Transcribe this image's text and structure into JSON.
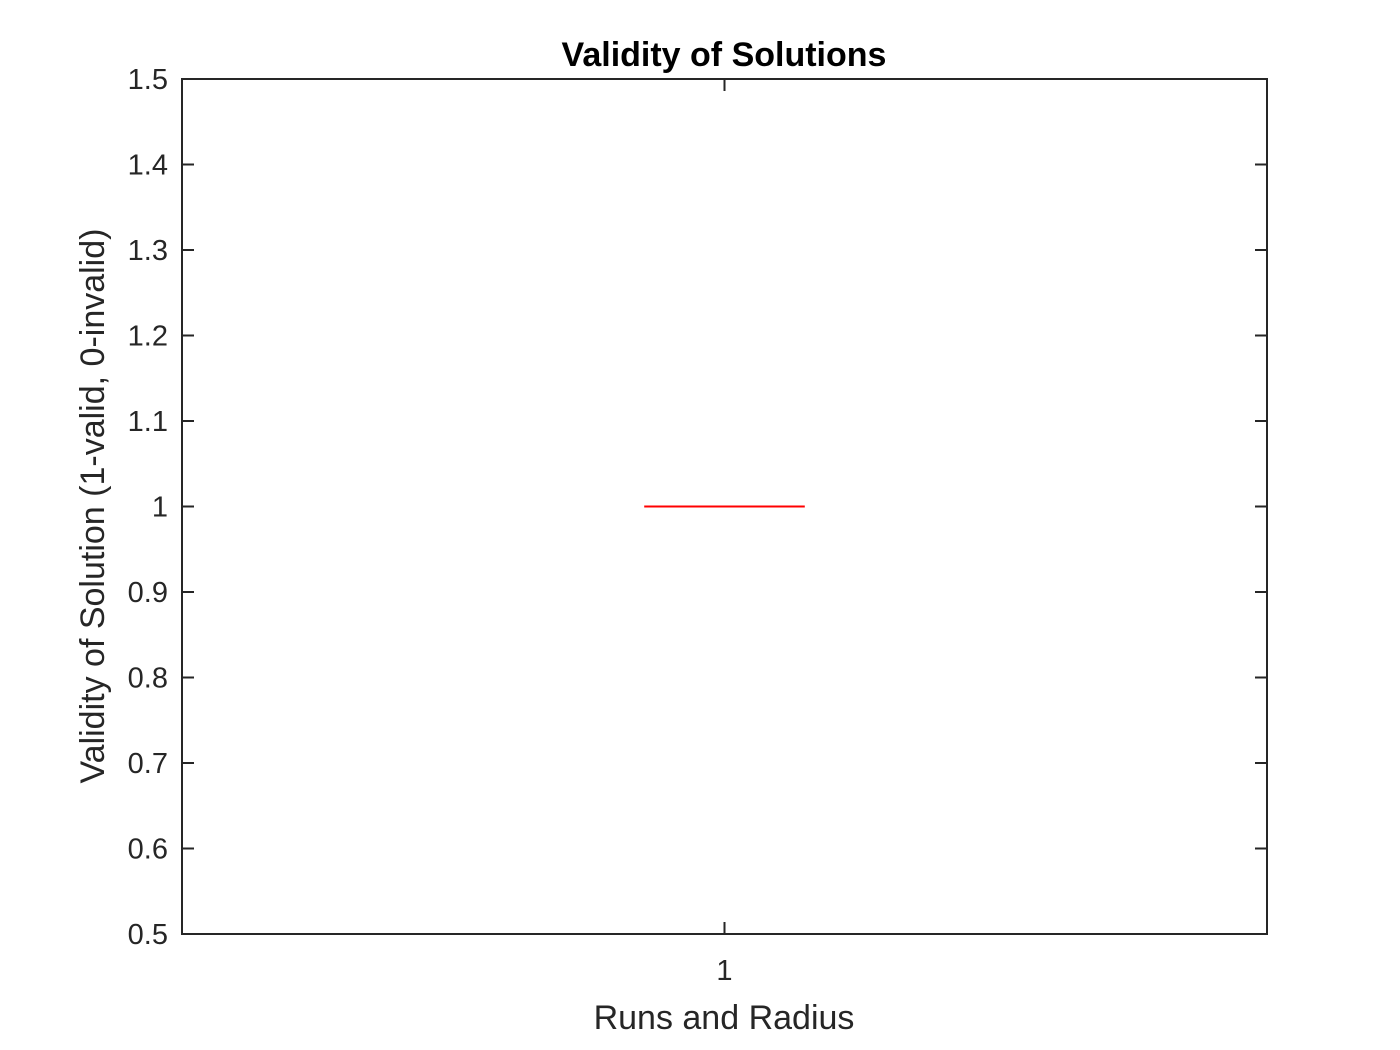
{
  "chart_data": {
    "type": "box",
    "title": "Validity of Solutions",
    "xlabel": "Runs and Radius",
    "ylabel": "Validity of Solution (1-valid, 0-invalid)",
    "categories": [
      "1"
    ],
    "ylim": [
      0.5,
      1.5
    ],
    "yticks": [
      "0.5",
      "0.6",
      "0.7",
      "0.8",
      "0.9",
      "1",
      "1.1",
      "1.2",
      "1.3",
      "1.4",
      "1.5"
    ],
    "yticks_values": [
      0.5,
      0.6,
      0.7,
      0.8,
      0.9,
      1.0,
      1.1,
      1.2,
      1.3,
      1.4,
      1.5
    ],
    "boxes": [
      {
        "category": "1",
        "min": 1,
        "q1": 1,
        "median": 1,
        "q3": 1,
        "max": 1
      }
    ],
    "grid": false,
    "colors": {
      "axes": "#262626",
      "median": "#ff0000",
      "title": "#000000"
    }
  }
}
